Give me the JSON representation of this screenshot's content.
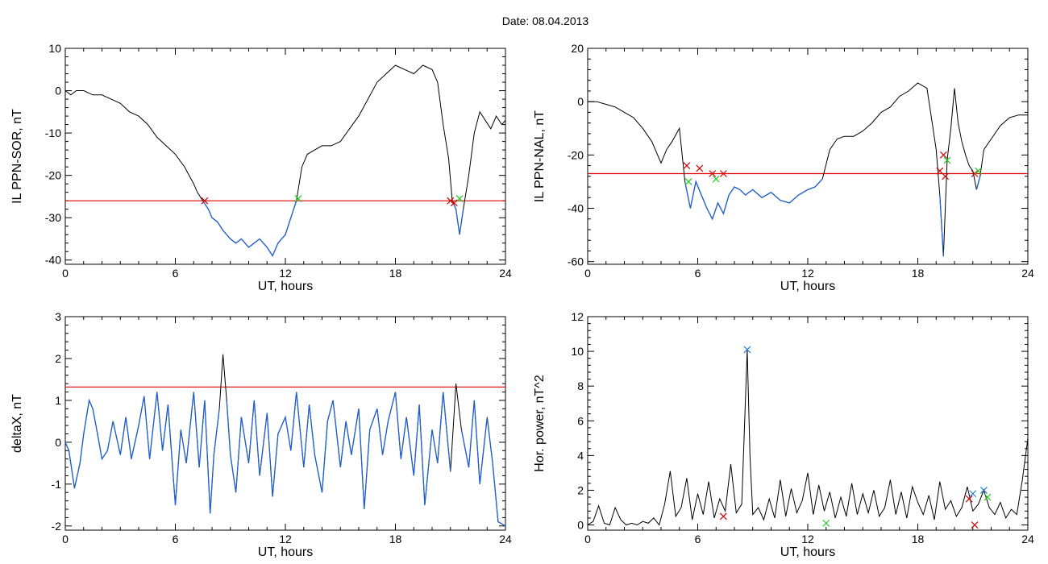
{
  "page_title": "Date:  08.04.2013",
  "colors": {
    "axis": "#000000",
    "trace": "#000000",
    "below_threshold": "#1f5fd0",
    "threshold_line": "#e00000",
    "marker_red": "#d00000",
    "marker_green": "#22cc22",
    "marker_blue": "#1f7fd0"
  },
  "chart_data": [
    {
      "id": "sor",
      "type": "line",
      "title": "",
      "xlabel": "UT, hours",
      "ylabel": "IL PPN-SOR, nT",
      "xlim": [
        0,
        24
      ],
      "ylim": [
        -41,
        10
      ],
      "xticks": [
        0,
        6,
        12,
        18,
        24
      ],
      "yticks": [
        -40,
        -30,
        -20,
        -10,
        0,
        10
      ],
      "threshold": -26,
      "series": [
        {
          "x": [
            0,
            0.3,
            0.6,
            1,
            1.5,
            2,
            2.5,
            3,
            3.5,
            4,
            4.5,
            5,
            5.5,
            6,
            6.5,
            7,
            7.2,
            7.5,
            7.8,
            8,
            8.3,
            8.6,
            9,
            9.3,
            9.6,
            10,
            10.3,
            10.6,
            11,
            11.3,
            11.6,
            12,
            12.3,
            12.6,
            12.9,
            13.2,
            13.6,
            14,
            14.5,
            15,
            15.5,
            16,
            16.5,
            17,
            17.5,
            18,
            18.5,
            19,
            19.5,
            20,
            20.3,
            20.6,
            20.9,
            21.1,
            21.3,
            21.5,
            21.7,
            22,
            22.3,
            22.6,
            22.9,
            23.2,
            23.5,
            23.8,
            24
          ],
          "values": [
            0,
            -1,
            0,
            0,
            -1,
            -1,
            -2,
            -3,
            -5,
            -6,
            -8,
            -11,
            -13,
            -15,
            -18,
            -22,
            -24,
            -26,
            -28,
            -30,
            -31,
            -33,
            -35,
            -36,
            -35,
            -37,
            -36,
            -35,
            -37,
            -39,
            -36,
            -34,
            -30,
            -26,
            -18,
            -15,
            -14,
            -13,
            -13,
            -12,
            -9,
            -6,
            -2,
            2,
            4,
            6,
            5,
            4,
            6,
            5,
            2,
            -8,
            -16,
            -26,
            -28,
            -34,
            -28,
            -20,
            -10,
            -5,
            -7,
            -9,
            -6,
            -8,
            -7
          ]
        }
      ],
      "markers": [
        {
          "x": 7.6,
          "y": -26,
          "color": "red"
        },
        {
          "x": 12.7,
          "y": -25.5,
          "color": "green"
        },
        {
          "x": 21.0,
          "y": -26,
          "color": "red"
        },
        {
          "x": 21.2,
          "y": -26.5,
          "color": "red"
        },
        {
          "x": 21.5,
          "y": -25.5,
          "color": "green"
        }
      ]
    },
    {
      "id": "nal",
      "type": "line",
      "title": "",
      "xlabel": "UT, hours",
      "ylabel": "IL PPN-NAL, nT",
      "xlim": [
        0,
        24
      ],
      "ylim": [
        -61,
        20
      ],
      "xticks": [
        0,
        6,
        12,
        18,
        24
      ],
      "yticks": [
        -60,
        -40,
        -20,
        0,
        20
      ],
      "threshold": -27,
      "series": [
        {
          "x": [
            0,
            0.5,
            1,
            1.5,
            2,
            2.5,
            3,
            3.5,
            4,
            4.3,
            4.6,
            5,
            5.3,
            5.6,
            5.9,
            6.2,
            6.5,
            6.8,
            7.1,
            7.4,
            7.7,
            8,
            8.3,
            8.6,
            9,
            9.5,
            10,
            10.5,
            11,
            11.5,
            12,
            12.4,
            12.8,
            13.2,
            13.6,
            14,
            14.5,
            15,
            15.5,
            16,
            16.5,
            17,
            17.5,
            18,
            18.5,
            19,
            19.2,
            19.4,
            19.6,
            19.8,
            20,
            20.2,
            20.4,
            20.6,
            20.8,
            21,
            21.2,
            21.4,
            21.6,
            22,
            22.5,
            23,
            23.5,
            24
          ],
          "values": [
            0,
            0,
            -1,
            -2,
            -4,
            -6,
            -10,
            -15,
            -23,
            -18,
            -15,
            -10,
            -30,
            -40,
            -30,
            -35,
            -40,
            -44,
            -38,
            -42,
            -35,
            -32,
            -33,
            -35,
            -33,
            -36,
            -34,
            -37,
            -38,
            -35,
            -33,
            -32,
            -29,
            -18,
            -14,
            -13,
            -13,
            -11,
            -8,
            -4,
            -2,
            2,
            4,
            7,
            5,
            -18,
            -35,
            -58,
            -22,
            -10,
            5,
            -8,
            -15,
            -20,
            -24,
            -26,
            -33,
            -28,
            -18,
            -14,
            -9,
            -6,
            -5,
            -5
          ]
        }
      ],
      "markers": [
        {
          "x": 5.4,
          "y": -24,
          "color": "red"
        },
        {
          "x": 5.5,
          "y": -30,
          "color": "green"
        },
        {
          "x": 6.1,
          "y": -25,
          "color": "red"
        },
        {
          "x": 6.8,
          "y": -27,
          "color": "red"
        },
        {
          "x": 7.0,
          "y": -29,
          "color": "green"
        },
        {
          "x": 7.4,
          "y": -27,
          "color": "red"
        },
        {
          "x": 19.2,
          "y": -26,
          "color": "red"
        },
        {
          "x": 19.4,
          "y": -20,
          "color": "red"
        },
        {
          "x": 19.5,
          "y": -28,
          "color": "red"
        },
        {
          "x": 19.6,
          "y": -22,
          "color": "green"
        },
        {
          "x": 21.1,
          "y": -27,
          "color": "red"
        },
        {
          "x": 21.3,
          "y": -26,
          "color": "green"
        }
      ]
    },
    {
      "id": "deltax",
      "type": "line",
      "title": "",
      "xlabel": "UT, hours",
      "ylabel": "deltaX, nT",
      "xlim": [
        0,
        24
      ],
      "ylim": [
        -2.1,
        3
      ],
      "xticks": [
        0,
        6,
        12,
        18,
        24
      ],
      "yticks": [
        -2,
        -1,
        0,
        1,
        2,
        3
      ],
      "threshold": 1.32,
      "series": [
        {
          "x": [
            0,
            0.2,
            0.5,
            0.8,
            1,
            1.3,
            1.5,
            1.8,
            2,
            2.3,
            2.6,
            3,
            3.3,
            3.6,
            4,
            4.3,
            4.6,
            5,
            5.3,
            5.6,
            6,
            6.3,
            6.6,
            7,
            7.3,
            7.6,
            7.9,
            8.1,
            8.4,
            8.6,
            8.8,
            9,
            9.3,
            9.6,
            10,
            10.3,
            10.6,
            11,
            11.3,
            11.6,
            12,
            12.3,
            12.6,
            13,
            13.3,
            13.6,
            14,
            14.3,
            14.6,
            15,
            15.3,
            15.6,
            16,
            16.3,
            16.6,
            17,
            17.3,
            17.6,
            18,
            18.3,
            18.6,
            19,
            19.3,
            19.6,
            20,
            20.3,
            20.6,
            21,
            21.3,
            21.6,
            22,
            22.3,
            22.6,
            23,
            23.3,
            23.6,
            24
          ],
          "values": [
            0,
            -0.2,
            -1.1,
            -0.5,
            0.2,
            1.0,
            0.8,
            0.1,
            -0.4,
            -0.2,
            0.5,
            -0.3,
            0.6,
            -0.4,
            0.4,
            1.1,
            -0.4,
            1.2,
            -0.2,
            0.9,
            -1.5,
            0.3,
            -0.5,
            1.2,
            -0.6,
            1.0,
            -1.7,
            -0.3,
            0.8,
            2.1,
            1.0,
            -0.3,
            -1.2,
            0.6,
            -0.5,
            1.0,
            -0.8,
            0.7,
            -1.3,
            0.2,
            0.6,
            -0.2,
            1.2,
            -0.6,
            0.9,
            -0.3,
            -1.2,
            0.5,
            1.0,
            -0.6,
            0.5,
            -0.3,
            0.8,
            -1.6,
            0.3,
            0.8,
            -0.3,
            0.5,
            1.2,
            -0.4,
            0.6,
            -0.8,
            0.9,
            -1.5,
            0.3,
            -0.5,
            1.2,
            -0.7,
            1.4,
            0.3,
            -0.6,
            1.0,
            -1.0,
            0.6,
            -0.5,
            -1.9,
            -2.0
          ]
        }
      ],
      "markers": []
    },
    {
      "id": "power",
      "type": "line",
      "title": "",
      "xlabel": "UT, hours",
      "ylabel": "Hor. power, nT^2",
      "xlim": [
        0,
        24
      ],
      "ylim": [
        -0.3,
        12
      ],
      "xticks": [
        0,
        6,
        12,
        18,
        24
      ],
      "yticks": [
        0,
        2,
        4,
        6,
        8,
        10,
        12
      ],
      "threshold": null,
      "series": [
        {
          "x": [
            0,
            0.3,
            0.6,
            0.9,
            1.2,
            1.5,
            1.8,
            2.1,
            2.4,
            2.7,
            3,
            3.3,
            3.6,
            3.9,
            4.2,
            4.5,
            4.8,
            5.1,
            5.4,
            5.7,
            6,
            6.3,
            6.6,
            6.9,
            7.2,
            7.5,
            7.8,
            8.1,
            8.4,
            8.7,
            8.85,
            9,
            9.3,
            9.6,
            9.9,
            10.2,
            10.5,
            10.8,
            11.1,
            11.4,
            11.7,
            12,
            12.3,
            12.6,
            12.9,
            13.2,
            13.5,
            13.8,
            14.1,
            14.4,
            14.7,
            15,
            15.3,
            15.6,
            15.9,
            16.2,
            16.5,
            16.8,
            17.1,
            17.4,
            17.7,
            18,
            18.3,
            18.6,
            18.9,
            19.2,
            19.5,
            19.8,
            20.1,
            20.4,
            20.7,
            21,
            21.3,
            21.6,
            21.9,
            22.2,
            22.5,
            22.8,
            23.1,
            23.4,
            23.7,
            24
          ],
          "values": [
            0,
            0.2,
            1.1,
            0.1,
            0,
            1.0,
            0.3,
            0,
            0.1,
            0,
            0.2,
            0.1,
            0.4,
            0,
            1.2,
            3.1,
            0.5,
            1.0,
            2.7,
            0.3,
            1.8,
            0.6,
            2.5,
            0.4,
            1.5,
            0.8,
            3.5,
            0.7,
            1.2,
            10.1,
            4.0,
            0.6,
            1.0,
            0.3,
            1.5,
            0.4,
            2.6,
            0.5,
            2.1,
            0.7,
            1.4,
            3.0,
            0.6,
            2.3,
            0.8,
            1.9,
            0.4,
            1.6,
            0.5,
            2.4,
            0.6,
            1.8,
            0.7,
            2.0,
            0.5,
            1.0,
            2.6,
            0.6,
            1.9,
            0.4,
            2.2,
            1.3,
            0.6,
            1.7,
            0.3,
            2.5,
            0.9,
            1.4,
            0.5,
            1.0,
            2.2,
            0.8,
            1.2,
            2.0,
            1.0,
            0.6,
            1.3,
            0.4,
            0.9,
            0.6,
            2.6,
            5.0
          ]
        }
      ],
      "markers": [
        {
          "x": 8.7,
          "y": 10.1,
          "color": "blue"
        },
        {
          "x": 7.4,
          "y": 0.5,
          "color": "red"
        },
        {
          "x": 13.0,
          "y": 0.1,
          "color": "green"
        },
        {
          "x": 20.8,
          "y": 1.5,
          "color": "red"
        },
        {
          "x": 21.0,
          "y": 1.8,
          "color": "blue"
        },
        {
          "x": 21.1,
          "y": 0.0,
          "color": "red"
        },
        {
          "x": 21.6,
          "y": 2.0,
          "color": "blue"
        },
        {
          "x": 21.8,
          "y": 1.6,
          "color": "green"
        }
      ]
    }
  ]
}
